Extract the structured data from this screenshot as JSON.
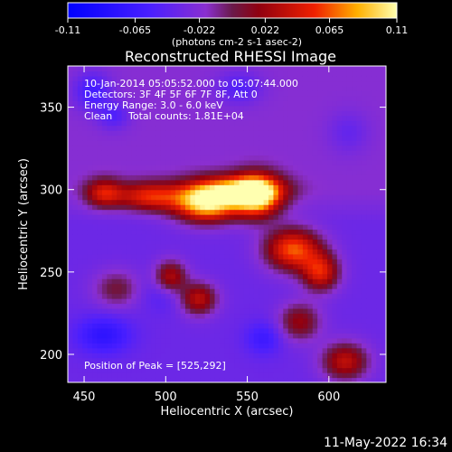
{
  "chart_data": {
    "type": "heatmap",
    "title": "Reconstructed RHESSI Image",
    "xlabel": "Heliocentric X (arcsec)",
    "ylabel": "Heliocentric Y (arcsec)",
    "xlim": [
      440,
      635
    ],
    "ylim": [
      183,
      375
    ],
    "x_ticks": [
      450,
      500,
      550,
      600
    ],
    "y_ticks": [
      200,
      250,
      300,
      350
    ],
    "annotations": [
      "10-Jan-2014 05:05:52.000 to 05:07:44.000",
      "Detectors: 3F 4F 5F 6F 7F 8F, Att 0",
      "Energy Range: 3.0 - 6.0 keV",
      "Clean",
      "Total counts: 1.81E+04"
    ],
    "peak_label": "Position of Peak = [525,292]",
    "peak": [
      525,
      292
    ],
    "colorbar": {
      "min": -0.11,
      "max": 0.11,
      "ticks": [
        "-0.11",
        "-0.065",
        "-0.022",
        "0.022",
        "0.065",
        "0.11"
      ],
      "units_label": "(photons cm-2 s-1 asec-2)"
    },
    "sources": [
      {
        "x": 525,
        "y": 292,
        "sx": 14,
        "sy": 8,
        "value": 0.11
      },
      {
        "x": 556,
        "y": 296,
        "sx": 10,
        "sy": 9,
        "value": 0.1
      },
      {
        "x": 545,
        "y": 300,
        "sx": 18,
        "sy": 6,
        "value": 0.07
      },
      {
        "x": 578,
        "y": 264,
        "sx": 12,
        "sy": 9,
        "value": 0.08
      },
      {
        "x": 595,
        "y": 250,
        "sx": 8,
        "sy": 8,
        "value": 0.06
      },
      {
        "x": 490,
        "y": 296,
        "sx": 14,
        "sy": 6,
        "value": 0.055
      },
      {
        "x": 462,
        "y": 298,
        "sx": 8,
        "sy": 6,
        "value": 0.045
      },
      {
        "x": 503,
        "y": 247,
        "sx": 7,
        "sy": 7,
        "value": 0.05
      },
      {
        "x": 520,
        "y": 234,
        "sx": 8,
        "sy": 7,
        "value": 0.05
      },
      {
        "x": 610,
        "y": 196,
        "sx": 10,
        "sy": 8,
        "value": 0.05
      },
      {
        "x": 582,
        "y": 220,
        "sx": 9,
        "sy": 8,
        "value": 0.035
      },
      {
        "x": 470,
        "y": 240,
        "sx": 10,
        "sy": 8,
        "value": 0.02
      },
      {
        "x": 455,
        "y": 360,
        "sx": 8,
        "sy": 8,
        "value": -0.06
      },
      {
        "x": 545,
        "y": 362,
        "sx": 10,
        "sy": 7,
        "value": -0.05
      },
      {
        "x": 468,
        "y": 345,
        "sx": 7,
        "sy": 6,
        "value": -0.05
      },
      {
        "x": 500,
        "y": 238,
        "sx": 10,
        "sy": 8,
        "value": -0.04
      },
      {
        "x": 612,
        "y": 335,
        "sx": 9,
        "sy": 9,
        "value": -0.04
      },
      {
        "x": 462,
        "y": 212,
        "sx": 12,
        "sy": 8,
        "value": -0.06
      },
      {
        "x": 560,
        "y": 210,
        "sx": 8,
        "sy": 7,
        "value": -0.05
      }
    ],
    "background_level": -0.02,
    "lower_region_level": -0.035
  },
  "footer": {
    "timestamp": "11-May-2022 16:34"
  }
}
